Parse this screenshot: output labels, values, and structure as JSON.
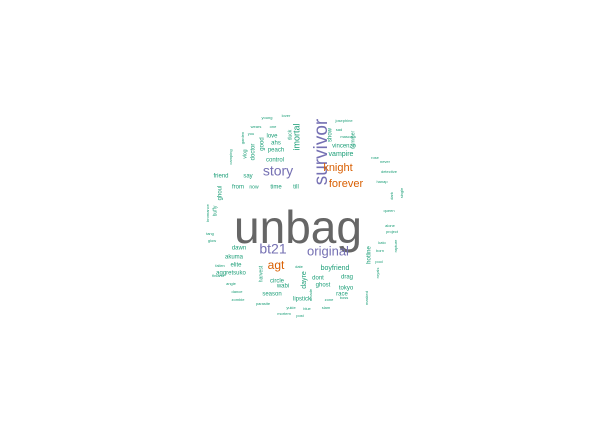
{
  "palette": {
    "gray": "#666666",
    "purple": "#7570b3",
    "orange": "#d95f02",
    "teal": "#1b9e77"
  },
  "words": [
    {
      "text": "unbag",
      "color": "gray"
    },
    {
      "text": "survivor",
      "color": "purple"
    },
    {
      "text": "story",
      "color": "purple"
    },
    {
      "text": "bt21",
      "color": "purple"
    },
    {
      "text": "original",
      "color": "purple"
    },
    {
      "text": "knight",
      "color": "orange"
    },
    {
      "text": "forever",
      "color": "orange"
    },
    {
      "text": "agt",
      "color": "orange"
    },
    {
      "text": "imortal",
      "color": "teal"
    },
    {
      "text": "vampire",
      "color": "teal"
    },
    {
      "text": "vincenzo",
      "color": "teal"
    },
    {
      "text": "show",
      "color": "teal"
    },
    {
      "text": "nummer",
      "color": "teal"
    },
    {
      "text": "ahs",
      "color": "teal"
    },
    {
      "text": "peach",
      "color": "teal"
    },
    {
      "text": "control",
      "color": "teal"
    },
    {
      "text": "love",
      "color": "teal"
    },
    {
      "text": "good",
      "color": "teal"
    },
    {
      "text": "doctor",
      "color": "teal"
    },
    {
      "text": "vlog",
      "color": "teal"
    },
    {
      "text": "duck",
      "color": "teal"
    },
    {
      "text": "say",
      "color": "teal"
    },
    {
      "text": "time",
      "color": "teal"
    },
    {
      "text": "till",
      "color": "teal"
    },
    {
      "text": "from",
      "color": "teal"
    },
    {
      "text": "now",
      "color": "teal"
    },
    {
      "text": "friend",
      "color": "teal"
    },
    {
      "text": "ghoul",
      "color": "teal"
    },
    {
      "text": "buffy",
      "color": "teal"
    },
    {
      "text": "bromance",
      "color": "teal"
    },
    {
      "text": "dawn",
      "color": "teal"
    },
    {
      "text": "akuma",
      "color": "teal"
    },
    {
      "text": "elite",
      "color": "teal"
    },
    {
      "text": "aggretsuko",
      "color": "teal"
    },
    {
      "text": "boyfriend",
      "color": "teal"
    },
    {
      "text": "dayre",
      "color": "teal"
    },
    {
      "text": "circle",
      "color": "teal"
    },
    {
      "text": "ghost",
      "color": "teal"
    },
    {
      "text": "dont",
      "color": "teal"
    },
    {
      "text": "drag",
      "color": "teal"
    },
    {
      "text": "tokyo",
      "color": "teal"
    },
    {
      "text": "race",
      "color": "teal"
    },
    {
      "text": "wabi",
      "color": "teal"
    },
    {
      "text": "season",
      "color": "teal"
    },
    {
      "text": "lipstick",
      "color": "teal"
    },
    {
      "text": "boss",
      "color": "teal"
    },
    {
      "text": "hotline",
      "color": "teal"
    },
    {
      "text": "harvest",
      "color": "teal"
    },
    {
      "text": "queen",
      "color": "teal"
    },
    {
      "text": "arcade",
      "color": "teal"
    },
    {
      "text": "josephine",
      "color": "teal"
    },
    {
      "text": "lover",
      "color": "teal"
    },
    {
      "text": "young",
      "color": "teal"
    },
    {
      "text": "mascara",
      "color": "teal"
    },
    {
      "text": "camping",
      "color": "teal"
    },
    {
      "text": "garden",
      "color": "teal"
    },
    {
      "text": "never",
      "color": "teal"
    },
    {
      "text": "detective",
      "color": "teal"
    },
    {
      "text": "hanap",
      "color": "teal"
    },
    {
      "text": "single",
      "color": "teal"
    },
    {
      "text": "dark",
      "color": "teal"
    },
    {
      "text": "kato",
      "color": "teal"
    },
    {
      "text": "born",
      "color": "teal"
    },
    {
      "text": "royals",
      "color": "teal"
    },
    {
      "text": "rapture",
      "color": "teal"
    },
    {
      "text": "fallen",
      "color": "teal"
    },
    {
      "text": "finland",
      "color": "teal"
    },
    {
      "text": "glow",
      "color": "teal"
    },
    {
      "text": "tang",
      "color": "teal"
    },
    {
      "text": "angie",
      "color": "teal"
    },
    {
      "text": "dance",
      "color": "teal"
    },
    {
      "text": "zombie",
      "color": "teal"
    },
    {
      "text": "parasite",
      "color": "teal"
    },
    {
      "text": "yukie",
      "color": "teal"
    },
    {
      "text": "blue",
      "color": "teal"
    },
    {
      "text": "slam",
      "color": "teal"
    },
    {
      "text": "zone",
      "color": "teal"
    },
    {
      "text": "post",
      "color": "teal"
    },
    {
      "text": "mortem",
      "color": "teal"
    },
    {
      "text": "masked",
      "color": "teal"
    },
    {
      "text": "pool",
      "color": "teal"
    },
    {
      "text": "date",
      "color": "teal"
    },
    {
      "text": "alone",
      "color": "teal"
    },
    {
      "text": "project",
      "color": "teal"
    },
    {
      "text": "rose",
      "color": "teal"
    },
    {
      "text": "sad",
      "color": "teal"
    },
    {
      "text": "one",
      "color": "teal"
    },
    {
      "text": "wears",
      "color": "teal"
    },
    {
      "text": "you",
      "color": "teal"
    }
  ]
}
